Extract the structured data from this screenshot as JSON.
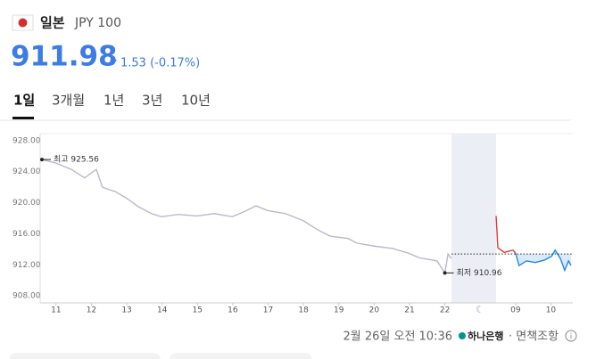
{
  "header": {
    "country": "일본",
    "currency": "JPY 100",
    "price": "911.98",
    "change": "1.53 (-0.17%)"
  },
  "tabs": [
    "1일",
    "3개월",
    "1년",
    "3년",
    "10년"
  ],
  "footer": {
    "time": "2월 26일 오전 10:36",
    "bank": "하나은행",
    "disclaimer": "· 면책조항"
  },
  "chart_data": {
    "type": "line",
    "xlim": [
      10.55,
      25.62
    ],
    "xticks": [
      11,
      12,
      13,
      14,
      15,
      16,
      17,
      18,
      19,
      20,
      21,
      22,
      {
        "value": 24,
        "label": "09"
      },
      {
        "value": 25,
        "label": "10"
      }
    ],
    "ylim": [
      907.1,
      928.9
    ],
    "yticks": [
      {
        "value": 928,
        "label": "928.00"
      },
      {
        "value": 924,
        "label": "924.00"
      },
      {
        "value": 920,
        "label": "920.00"
      },
      {
        "value": 916,
        "label": "916.00"
      },
      {
        "value": 912,
        "label": "912.00"
      },
      {
        "value": 908,
        "label": "908.00"
      }
    ],
    "shaded_range": [
      22.19,
      23.45
    ],
    "reference_line": 913.4,
    "series": [
      {
        "color": "#b9b9cf",
        "x": [
          10.6,
          11,
          11.43,
          11.81,
          12.14,
          12.31,
          12.69,
          12.99,
          13.32,
          13.7,
          13.98,
          14.46,
          14.99,
          15.47,
          15.98,
          16.35,
          16.66,
          16.98,
          17.49,
          17.99,
          18.37,
          18.75,
          19.26,
          19.51,
          20.02,
          20.52,
          20.97,
          21.28,
          21.78,
          22.0,
          22.09,
          22.19
        ],
        "values": [
          925.56,
          925.1,
          924.3,
          923.2,
          924.3,
          922.0,
          921.4,
          920.6,
          919.5,
          918.6,
          918.2,
          918.5,
          918.3,
          918.6,
          918.2,
          918.9,
          919.6,
          919.0,
          918.6,
          917.7,
          916.6,
          915.7,
          915.4,
          914.8,
          914.4,
          914.1,
          913.5,
          912.9,
          912.5,
          910.96,
          913.4,
          912.8
        ]
      },
      {
        "color": "#e53935",
        "x": [
          23.45,
          23.5,
          23.68,
          23.93,
          24.0
        ],
        "values": [
          918.3,
          914.2,
          913.6,
          913.9,
          913.5
        ]
      },
      {
        "color": "#1e88e5",
        "x": [
          24.0,
          24.1,
          24.31,
          24.56,
          24.81,
          25.02,
          25.12,
          25.27,
          25.39,
          25.5,
          25.57
        ],
        "values": [
          913.5,
          911.9,
          912.5,
          912.3,
          912.6,
          913.1,
          913.9,
          912.8,
          911.3,
          912.5,
          911.9
        ],
        "fill": true
      }
    ],
    "annotations": [
      {
        "text": "최고 925.56",
        "x": 10.6,
        "y": 925.56
      },
      {
        "text": "최저 910.96",
        "x": 22.0,
        "y": 910.96
      }
    ]
  }
}
